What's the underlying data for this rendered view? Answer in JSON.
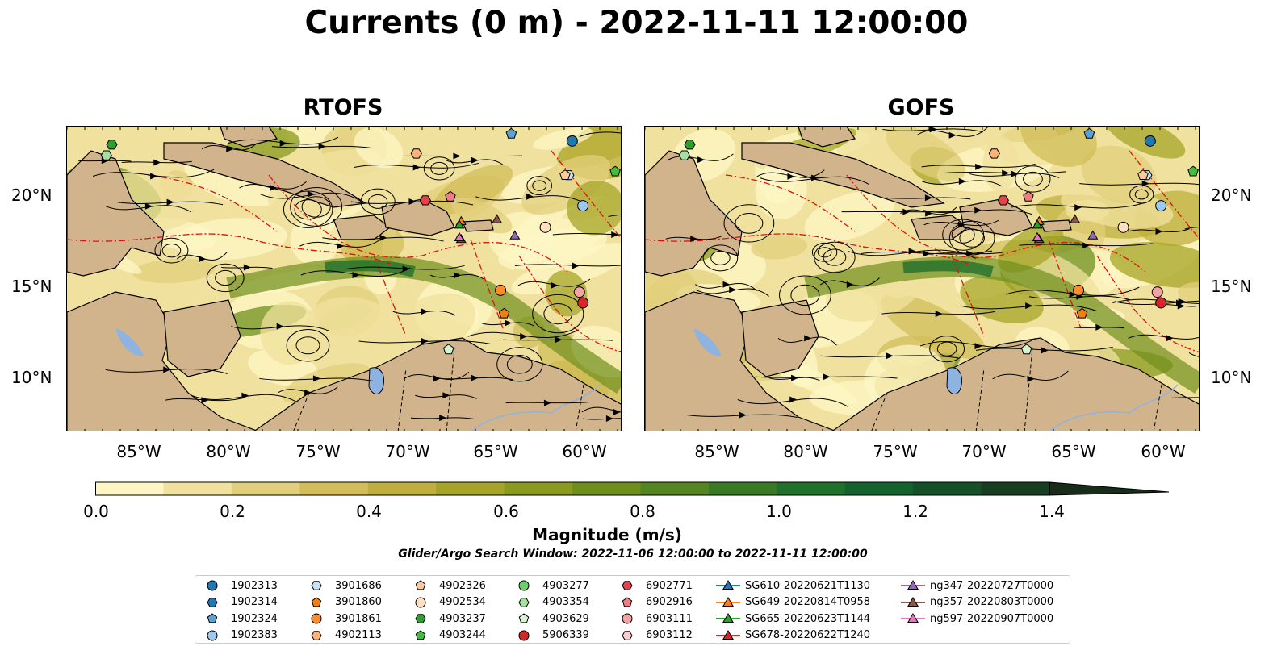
{
  "title": "Currents (0 m) - 2022-11-11 12:00:00",
  "panels": [
    {
      "title": "RTOFS"
    },
    {
      "title": "GOFS"
    }
  ],
  "axes": {
    "lat_labels": [
      "20°N",
      "15°N",
      "10°N"
    ],
    "lon_labels": [
      "85°W",
      "80°W",
      "75°W",
      "70°W",
      "65°W",
      "60°W"
    ]
  },
  "colorbar": {
    "label": "Magnitude (m/s)",
    "ticks": [
      "0.0",
      "0.2",
      "0.4",
      "0.6",
      "0.8",
      "1.0",
      "1.2",
      "1.4"
    ],
    "colors": [
      "#fdf6c4",
      "#f0e19e",
      "#e1cf7b",
      "#d2bd5a",
      "#bfb03d",
      "#a5a427",
      "#8a9a1d",
      "#6f8f1c",
      "#548520",
      "#3a7a24",
      "#21702c",
      "#14632e",
      "#155028",
      "#183e22",
      "#182c1a"
    ],
    "land_color": "#d2b48c",
    "lake_color": "#8fb3e0"
  },
  "search_window": "Glider/Argo Search Window: 2022-11-06 12:00:00 to 2022-11-11 12:00:00",
  "legend": {
    "items": [
      {
        "label": "1902313",
        "marker": "circle",
        "color": "#1f77b4"
      },
      {
        "label": "1902314",
        "marker": "hexagon",
        "color": "#1f77b4"
      },
      {
        "label": "1902324",
        "marker": "pentagon",
        "color": "#5aa1d6"
      },
      {
        "label": "1902383",
        "marker": "circle",
        "color": "#9ec9ec"
      },
      {
        "label": "3901686",
        "marker": "hexagon",
        "color": "#c6e2f7"
      },
      {
        "label": "3901860",
        "marker": "pentagon",
        "color": "#ef7f12"
      },
      {
        "label": "3901861",
        "marker": "circle",
        "color": "#ff8c2a"
      },
      {
        "label": "4902113",
        "marker": "hexagon",
        "color": "#ffb278"
      },
      {
        "label": "4902326",
        "marker": "pentagon",
        "color": "#ffc99b"
      },
      {
        "label": "4902534",
        "marker": "circle",
        "color": "#ffe0c2"
      },
      {
        "label": "4903237",
        "marker": "hexagon",
        "color": "#2ca02c"
      },
      {
        "label": "4903244",
        "marker": "pentagon",
        "color": "#3fbf3f"
      },
      {
        "label": "4903277",
        "marker": "circle",
        "color": "#6fcf6f"
      },
      {
        "label": "4903354",
        "marker": "hexagon",
        "color": "#a6e0a0"
      },
      {
        "label": "4903629",
        "marker": "pentagon",
        "color": "#d6f4d2"
      },
      {
        "label": "5906339",
        "marker": "circle",
        "color": "#d62728"
      },
      {
        "label": "6902771",
        "marker": "hexagon",
        "color": "#e0444f"
      },
      {
        "label": "6902916",
        "marker": "pentagon",
        "color": "#f07d82"
      },
      {
        "label": "6903111",
        "marker": "circle",
        "color": "#f4a3a5"
      },
      {
        "label": "6903112",
        "marker": "hexagon",
        "color": "#fbcfd0"
      },
      {
        "label": "SG610-20220621T1130",
        "marker": "triangle-line",
        "color": "#1f77b4"
      },
      {
        "label": "SG649-20220814T0958",
        "marker": "triangle-line",
        "color": "#ff7f0e"
      },
      {
        "label": "SG665-20220623T1144",
        "marker": "triangle-line",
        "color": "#2ca02c"
      },
      {
        "label": "SG678-20220622T1240",
        "marker": "triangle-line",
        "color": "#d62728"
      },
      {
        "label": "ng347-20220727T0000",
        "marker": "triangle-line",
        "color": "#9467bd"
      },
      {
        "label": "ng357-20220803T0000",
        "marker": "triangle-line",
        "color": "#8c564b"
      },
      {
        "label": "ng597-20220907T0000",
        "marker": "triangle-line",
        "color": "#e377c2"
      }
    ]
  }
}
